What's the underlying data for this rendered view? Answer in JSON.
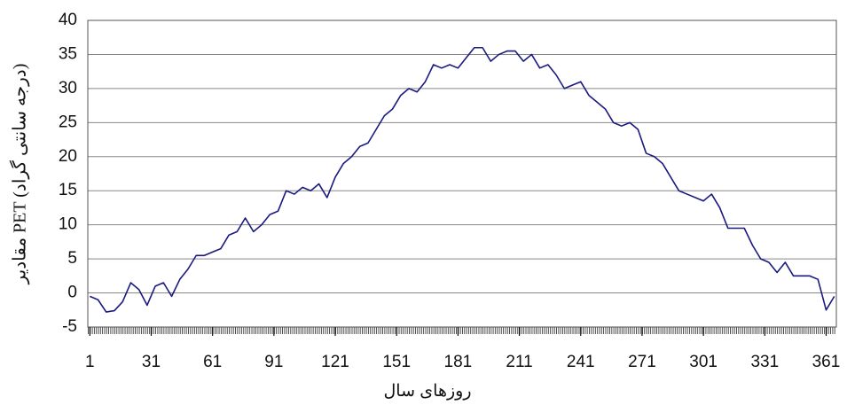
{
  "chart_data": {
    "type": "line",
    "x_label": "روزهای سال",
    "y_label": "مقادیر PET (درجه سانتی گراد)",
    "xlim": [
      0,
      366
    ],
    "xticks": [
      1,
      31,
      61,
      91,
      121,
      151,
      181,
      211,
      241,
      271,
      301,
      331,
      361
    ],
    "ylim": [
      -5,
      40
    ],
    "yticks": [
      -5,
      0,
      5,
      10,
      15,
      20,
      25,
      30,
      35,
      40
    ],
    "grid": true,
    "x": [
      1,
      5,
      9,
      13,
      17,
      21,
      25,
      29,
      33,
      37,
      41,
      45,
      49,
      53,
      57,
      61,
      65,
      69,
      73,
      77,
      81,
      85,
      89,
      93,
      97,
      101,
      105,
      109,
      113,
      117,
      121,
      125,
      129,
      133,
      137,
      141,
      145,
      149,
      153,
      157,
      161,
      165,
      169,
      173,
      177,
      181,
      185,
      189,
      193,
      197,
      201,
      205,
      209,
      213,
      217,
      221,
      225,
      229,
      233,
      237,
      241,
      245,
      249,
      253,
      257,
      261,
      265,
      269,
      273,
      277,
      281,
      285,
      289,
      293,
      297,
      301,
      305,
      309,
      313,
      317,
      321,
      325,
      329,
      333,
      337,
      341,
      345,
      349,
      353,
      357,
      361,
      365
    ],
    "series": [
      {
        "color": "#1a1a80",
        "values": [
          -0.5,
          -1,
          -2.8,
          -2.6,
          -1.3,
          1.5,
          0.5,
          -1.8,
          1,
          1.5,
          -0.5,
          2,
          3.5,
          5.5,
          5.5,
          6,
          6.5,
          8.5,
          9,
          11,
          9,
          10,
          11.5,
          12,
          15,
          14.5,
          15.5,
          15,
          16,
          14,
          17,
          19,
          20,
          21.5,
          22,
          24,
          26,
          27,
          29,
          30,
          29.5,
          31,
          33.5,
          33,
          33.5,
          33,
          34.5,
          36,
          36,
          34,
          35,
          35.5,
          35.5,
          34,
          35,
          33,
          33.5,
          32,
          30,
          30.5,
          31,
          29,
          28,
          27,
          25,
          24.5,
          25,
          24,
          20.5,
          20,
          19,
          17,
          15,
          14.5,
          14,
          13.5,
          14.5,
          12.5,
          9.5,
          9.5,
          9.5,
          7,
          5,
          4.5,
          3,
          4.5,
          2.5,
          2.5,
          2.5,
          2,
          -2.5,
          -0.5
        ]
      }
    ]
  }
}
